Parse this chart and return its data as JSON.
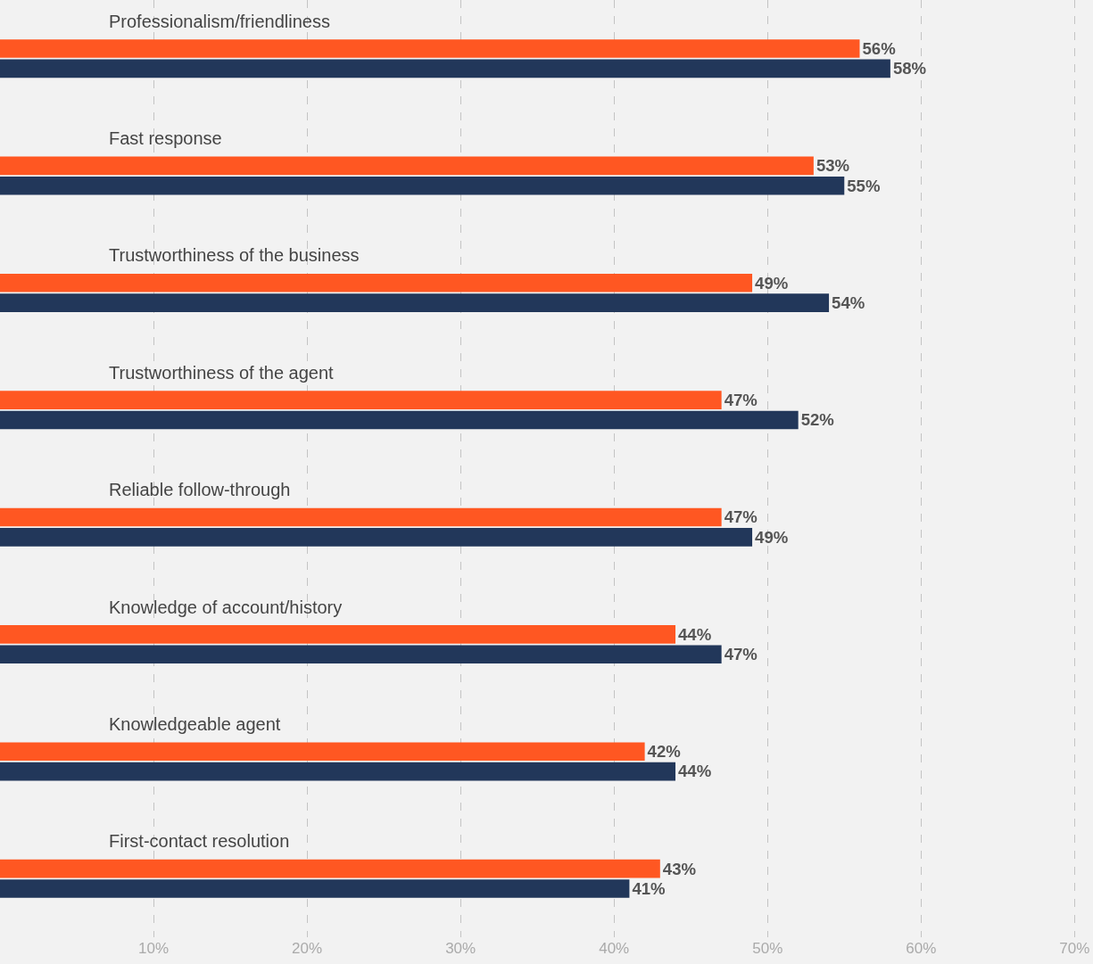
{
  "chart_data": {
    "type": "bar",
    "orientation": "horizontal",
    "categories": [
      "Professionalism/friendliness",
      "Fast response",
      "Trustworthiness of the business",
      "Trustworthiness of the agent",
      "Reliable follow-through",
      "Knowledge of account/history",
      "Knowledgeable agent",
      "First-contact resolution"
    ],
    "series": [
      {
        "color": "#ff5722",
        "values": [
          56,
          53,
          49,
          47,
          47,
          44,
          42,
          43
        ],
        "value_labels": [
          "56%",
          "53%",
          "49%",
          "47%",
          "47%",
          "44%",
          "42%",
          "43%"
        ]
      },
      {
        "color": "#22375a",
        "values": [
          58,
          55,
          54,
          52,
          49,
          47,
          44,
          41
        ],
        "value_labels": [
          "58%",
          "55%",
          "54%",
          "52%",
          "49%",
          "47%",
          "44%",
          "41%"
        ]
      }
    ],
    "xlim": [
      0,
      71.2
    ],
    "xticks": [
      {
        "value": 10,
        "label": "10%"
      },
      {
        "value": 20,
        "label": "20%"
      },
      {
        "value": 30,
        "label": "30%"
      },
      {
        "value": 40,
        "label": "40%"
      },
      {
        "value": 50,
        "label": "50%"
      },
      {
        "value": 60,
        "label": "60%"
      },
      {
        "value": 70,
        "label": "70%"
      }
    ],
    "grid": "x"
  }
}
